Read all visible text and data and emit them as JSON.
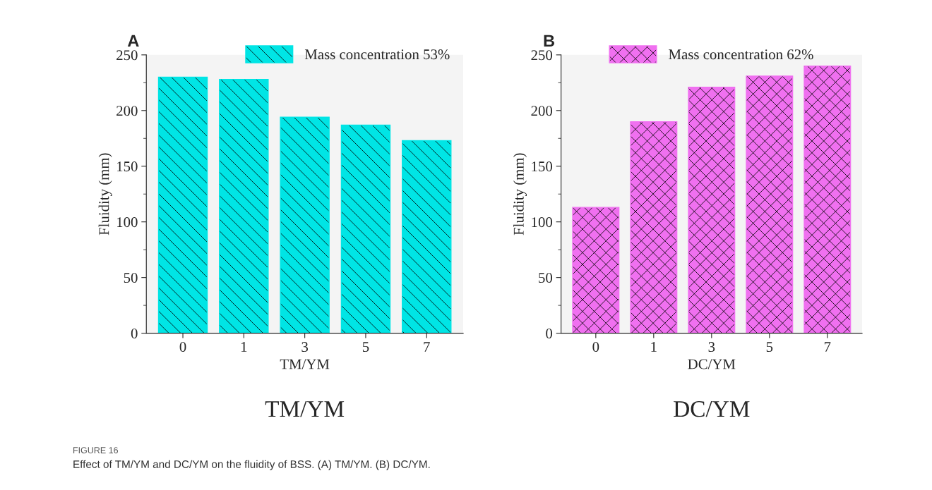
{
  "chart_data": [
    {
      "type": "bar",
      "title": "A",
      "xlabel": "TM/YM",
      "ylabel": "Fluidity (mm)",
      "categories": [
        "0",
        "1",
        "3",
        "5",
        "7"
      ],
      "series": [
        {
          "name": "Mass concentration 53%",
          "color": "#00e5e5",
          "values": [
            230,
            228,
            194,
            187,
            173
          ]
        }
      ],
      "ylim": [
        0,
        250
      ],
      "yticks": [
        0,
        50,
        100,
        150,
        200,
        250
      ],
      "legend": "top right",
      "annotations": [
        "TM/YM",
        "FIGURE 16",
        "Effect of TM/YM and DC/YM on the fluidity of BSS. (A) TM/YM. (B) DC/YM."
      ]
    },
    {
      "type": "bar",
      "title": "B",
      "xlabel": "DC/YM",
      "ylabel": "Fluidity (mm)",
      "categories": [
        "0",
        "1",
        "3",
        "5",
        "7"
      ],
      "series": [
        {
          "name": "Mass concentration 62%",
          "color": "#f070f0",
          "values": [
            113,
            190,
            221,
            231,
            240
          ]
        }
      ],
      "ylim": [
        0,
        250
      ],
      "yticks": [
        0,
        50,
        100,
        150,
        200,
        250
      ],
      "legend": "top",
      "annotations": [
        "DC/YM"
      ]
    }
  ]
}
